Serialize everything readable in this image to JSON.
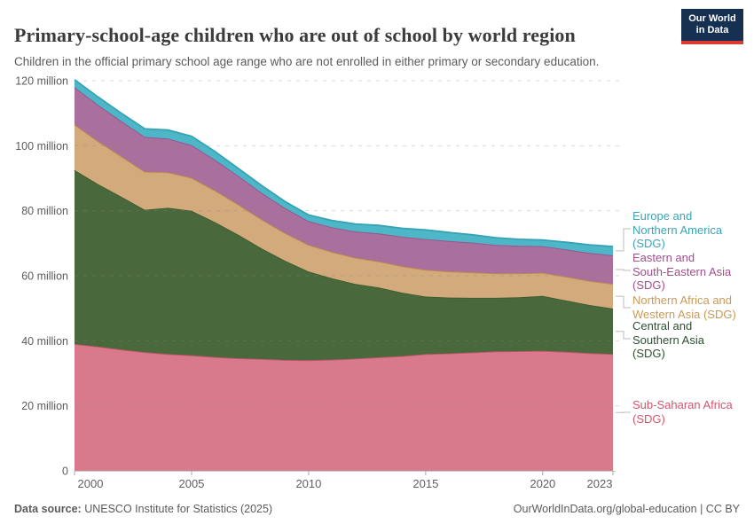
{
  "header": {
    "title": "Primary-school-age children who are out of school by world region",
    "subtitle": "Children in the official primary school age range who are not enrolled in either primary or secondary education.",
    "logo": {
      "line1": "Our World",
      "line2": "in Data",
      "bg": "#163052",
      "accent": "#dd3b31"
    }
  },
  "chart_data": {
    "type": "area",
    "stacked": true,
    "title": "Primary-school-age children who are out of school by world region",
    "unit": "million",
    "xlabel": "",
    "ylabel": "",
    "xlim": [
      2000,
      2023
    ],
    "ylim": [
      0,
      120
    ],
    "grid": "dashed-horizontal",
    "legend_position": "right",
    "x": [
      2000,
      2001,
      2002,
      2003,
      2004,
      2005,
      2006,
      2007,
      2008,
      2009,
      2010,
      2011,
      2012,
      2013,
      2014,
      2015,
      2016,
      2017,
      2018,
      2019,
      2020,
      2021,
      2022,
      2023
    ],
    "series": [
      {
        "id": "ssa",
        "name": "Sub-Saharan Africa (SDG)",
        "label": "Sub-Saharan Africa\n(SDG)",
        "color": "#d9798c",
        "line": "#c9536d",
        "text": "#d0566f",
        "values": [
          39.0,
          38.2,
          37.3,
          36.5,
          35.9,
          35.5,
          35.0,
          34.6,
          34.4,
          34.1,
          34.0,
          34.2,
          34.5,
          34.9,
          35.3,
          35.9,
          36.1,
          36.4,
          36.7,
          36.8,
          36.9,
          36.6,
          36.2,
          35.9
        ]
      },
      {
        "id": "csa",
        "name": "Central and Southern Asia (SDG)",
        "label": "Central and\nSouthern Asia\n(SDG)",
        "color": "#49683c",
        "line": "#3a5c2e",
        "text": "#2f4e33",
        "values": [
          53.5,
          50.0,
          47.0,
          43.8,
          45.0,
          44.5,
          41.5,
          38.0,
          34.0,
          30.5,
          27.3,
          25.0,
          23.0,
          21.5,
          19.5,
          17.7,
          17.2,
          16.8,
          16.5,
          16.6,
          16.9,
          15.8,
          14.8,
          14.0
        ]
      },
      {
        "id": "nawa",
        "name": "Northern Africa and Western Asia (SDG)",
        "label": "Northern Africa and\nWestern Asia (SDG)",
        "color": "#d2aa7c",
        "line": "#c19045",
        "text": "#c89a58",
        "values": [
          14.0,
          13.2,
          12.4,
          11.7,
          10.9,
          10.1,
          9.7,
          9.3,
          8.9,
          8.5,
          8.2,
          8.1,
          8.0,
          8.0,
          8.1,
          8.2,
          8.0,
          7.8,
          7.5,
          7.3,
          7.1,
          7.3,
          7.4,
          7.6
        ]
      },
      {
        "id": "esea",
        "name": "Eastern and South-Eastern Asia (SDG)",
        "label": "Eastern and\nSouth-Eastern Asia\n(SDG)",
        "color": "#a96f9d",
        "line": "#985390",
        "text": "#a04f8a",
        "values": [
          11.5,
          11.2,
          10.9,
          10.7,
          10.4,
          10.1,
          9.5,
          8.8,
          8.2,
          7.7,
          7.3,
          7.6,
          8.1,
          8.6,
          9.1,
          9.5,
          9.4,
          9.2,
          8.8,
          8.5,
          8.2,
          8.4,
          8.6,
          8.8
        ]
      },
      {
        "id": "ena",
        "name": "Europe and Northern America (SDG)",
        "label": "Europe and\nNorthern America\n(SDG)",
        "color": "#4eb7c7",
        "line": "#35a3b6",
        "text": "#3aa4b6",
        "values": [
          2.3,
          2.4,
          2.4,
          2.5,
          2.6,
          2.7,
          2.5,
          2.3,
          2.2,
          2.0,
          1.9,
          2.1,
          2.3,
          2.5,
          2.6,
          2.8,
          2.6,
          2.4,
          2.2,
          2.0,
          1.9,
          2.2,
          2.5,
          2.7
        ]
      }
    ],
    "y_ticks": [
      {
        "value": 0,
        "label": "0"
      },
      {
        "value": 20,
        "label": "20 million"
      },
      {
        "value": 40,
        "label": "40 million"
      },
      {
        "value": 60,
        "label": "60 million"
      },
      {
        "value": 80,
        "label": "80 million"
      },
      {
        "value": 100,
        "label": "100 million"
      },
      {
        "value": 120,
        "label": "120 million"
      }
    ],
    "x_ticks": [
      {
        "value": 2000,
        "label": "2000"
      },
      {
        "value": 2005,
        "label": "2005"
      },
      {
        "value": 2010,
        "label": "2010"
      },
      {
        "value": 2015,
        "label": "2015"
      },
      {
        "value": 2020,
        "label": "2020"
      },
      {
        "value": 2023,
        "label": "2023"
      }
    ]
  },
  "footer": {
    "source_label": "Data source:",
    "source_text": " UNESCO Institute for Statistics (2025)",
    "right_text": "OurWorldInData.org/global-education | CC BY"
  }
}
